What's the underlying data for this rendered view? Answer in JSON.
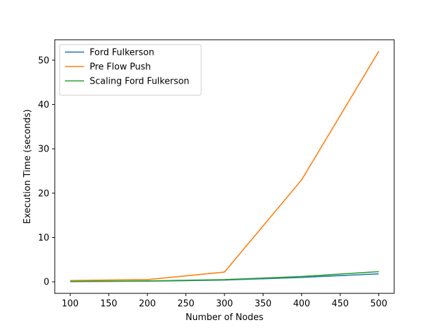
{
  "chart_data": {
    "type": "line",
    "title": "",
    "xlabel": "Number of Nodes",
    "ylabel": "Execution Time (seconds)",
    "x": [
      100,
      200,
      300,
      400,
      500
    ],
    "xlim": [
      80,
      520
    ],
    "ylim": [
      -2.6,
      54.6
    ],
    "xticks": [
      100,
      150,
      200,
      250,
      300,
      350,
      400,
      450,
      500
    ],
    "yticks": [
      0,
      10,
      20,
      30,
      40,
      50
    ],
    "grid": false,
    "legend_position": "upper-left",
    "series": [
      {
        "name": "Ford Fulkerson",
        "color": "#1f77b4",
        "values": [
          0.05,
          0.15,
          0.4,
          1.0,
          1.8
        ]
      },
      {
        "name": "Pre Flow Push",
        "color": "#ff7f0e",
        "values": [
          0.3,
          0.5,
          2.2,
          23.0,
          52.0
        ]
      },
      {
        "name": "Scaling Ford Fulkerson",
        "color": "#2ca02c",
        "values": [
          0.1,
          0.2,
          0.5,
          1.2,
          2.3
        ]
      }
    ]
  }
}
